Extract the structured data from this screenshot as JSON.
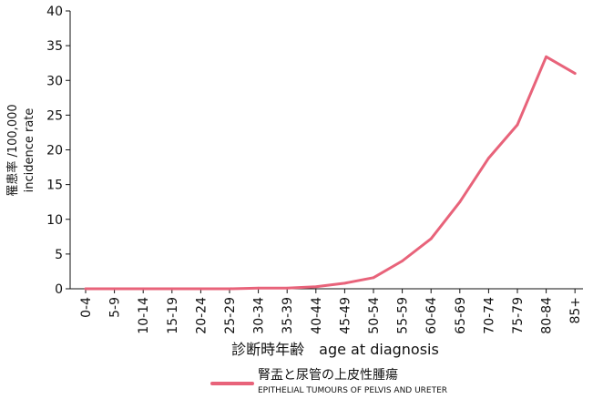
{
  "chart_data": {
    "type": "line",
    "title": "",
    "xlabel": "診断時年齢　age at diagnosis",
    "ylabel_line1": "罹患率 /100,000",
    "ylabel_line2": "incidence rate",
    "ylim": [
      0,
      40
    ],
    "yticks": [
      0,
      5,
      10,
      15,
      20,
      25,
      30,
      35,
      40
    ],
    "grid": false,
    "legend_position": "bottom-center",
    "categories": [
      "0-4",
      "5-9",
      "10-14",
      "15-19",
      "20-24",
      "25-29",
      "30-34",
      "35-39",
      "40-44",
      "45-49",
      "50-54",
      "55-59",
      "60-64",
      "65-69",
      "70-74",
      "75-79",
      "80-84",
      "85+"
    ],
    "series": [
      {
        "name": "腎盂と尿管の上皮性腫瘍",
        "subtitle": "EPITHELIAL TUMOURS OF PELVIS AND URETER",
        "color": "#e8637a",
        "values": [
          0,
          0,
          0,
          0,
          0,
          0,
          0.1,
          0.1,
          0.3,
          0.8,
          1.6,
          4.0,
          7.2,
          12.5,
          18.8,
          23.6,
          33.4,
          31.0
        ]
      }
    ]
  }
}
